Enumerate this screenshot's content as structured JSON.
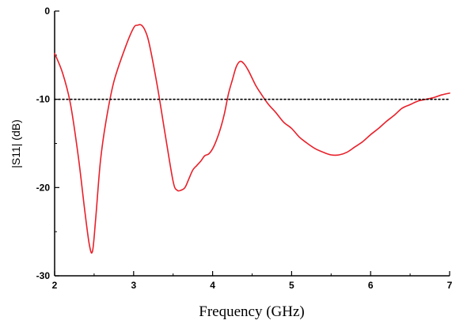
{
  "chart_data": {
    "type": "line",
    "title": "",
    "xlabel": "Frequency (GHz)",
    "ylabel": "|S11| (dB)",
    "xlim": [
      2,
      7
    ],
    "ylim": [
      -30,
      0
    ],
    "x_ticks": [
      2,
      3,
      4,
      5,
      6,
      7
    ],
    "x_tick_labels": [
      "2",
      "3",
      "4",
      "5",
      "6",
      "7"
    ],
    "y_ticks": [
      0,
      -10,
      -20,
      -30
    ],
    "y_tick_labels": [
      "0",
      "-10",
      "-20",
      "-30"
    ],
    "grid": false,
    "legend": "none",
    "series": [
      {
        "color": "#e8202a",
        "style": "solid",
        "x": [
          2.0,
          2.1,
          2.2,
          2.3,
          2.38,
          2.44,
          2.48,
          2.52,
          2.58,
          2.65,
          2.75,
          2.9,
          3.0,
          3.05,
          3.1,
          3.15,
          3.2,
          3.3,
          3.4,
          3.5,
          3.55,
          3.6,
          3.65,
          3.7,
          3.75,
          3.8,
          3.85,
          3.9,
          3.95,
          4.0,
          4.05,
          4.1,
          4.15,
          4.2,
          4.25,
          4.3,
          4.35,
          4.4,
          4.45,
          4.5,
          4.55,
          4.6,
          4.7,
          4.8,
          4.9,
          5.0,
          5.1,
          5.2,
          5.3,
          5.4,
          5.5,
          5.6,
          5.7,
          5.8,
          5.9,
          6.0,
          6.1,
          6.2,
          6.3,
          6.4,
          6.5,
          6.6,
          6.7,
          6.8,
          6.9,
          7.0
        ],
        "y": [
          -4.8,
          -7.0,
          -10.5,
          -16.5,
          -22.5,
          -26.5,
          -27.2,
          -23.5,
          -17.0,
          -12.5,
          -8.0,
          -4.0,
          -1.9,
          -1.6,
          -1.6,
          -2.3,
          -3.8,
          -8.5,
          -14.0,
          -19.3,
          -20.3,
          -20.3,
          -20.0,
          -19.0,
          -18.0,
          -17.5,
          -17.0,
          -16.4,
          -16.2,
          -15.6,
          -14.6,
          -13.3,
          -11.6,
          -9.4,
          -7.8,
          -6.3,
          -5.7,
          -6.0,
          -6.7,
          -7.6,
          -8.5,
          -9.2,
          -10.5,
          -11.5,
          -12.6,
          -13.3,
          -14.3,
          -15.0,
          -15.6,
          -16.0,
          -16.3,
          -16.3,
          -16.0,
          -15.4,
          -14.8,
          -14.0,
          -13.3,
          -12.5,
          -11.8,
          -11.0,
          -10.6,
          -10.2,
          -10.0,
          -9.8,
          -9.5,
          -9.3
        ]
      },
      {
        "color": "#000000",
        "style": "dotted",
        "x": [
          2,
          7
        ],
        "y": [
          -10,
          -10
        ]
      }
    ]
  }
}
